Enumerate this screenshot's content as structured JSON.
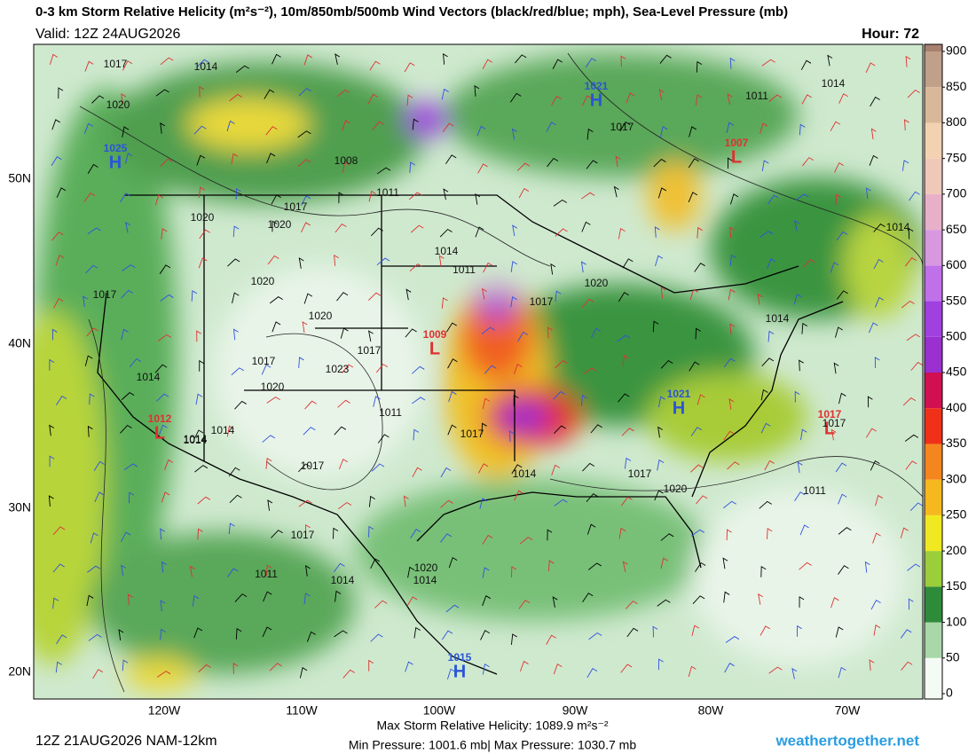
{
  "header": {
    "title": "0-3 km Storm Relative Helicity (m²s⁻²), 10m/850mb/500mb Wind Vectors (black/red/blue; mph), Sea-Level Pressure (mb)",
    "valid": "Valid: 12Z 24AUG2026",
    "hour": "Hour: 72"
  },
  "map": {
    "lat_labels": [
      "50N",
      "40N",
      "30N",
      "20N"
    ],
    "lon_labels": [
      "120W",
      "110W",
      "100W",
      "90W",
      "80W",
      "70W"
    ],
    "pressure_centers": [
      {
        "symbol": "H",
        "value": "1025",
        "color": "#2a55d8"
      },
      {
        "symbol": "H",
        "value": "1021",
        "color": "#2a55d8"
      },
      {
        "symbol": "L",
        "value": "1007",
        "color": "#e03030"
      },
      {
        "symbol": "L",
        "value": "1009",
        "color": "#e03030"
      },
      {
        "symbol": "H",
        "value": "1021",
        "color": "#2a55d8"
      },
      {
        "symbol": "L",
        "value": "1017",
        "color": "#e03030"
      },
      {
        "symbol": "L",
        "value": "1012",
        "color": "#e03030"
      },
      {
        "symbol": "H",
        "value": "1015",
        "color": "#2a55d8"
      }
    ],
    "isobar_labels": [
      "1017",
      "1014",
      "1020",
      "1008",
      "1011",
      "1020",
      "1017",
      "1020",
      "1014",
      "1011",
      "1017",
      "1020",
      "1017",
      "1020",
      "1017",
      "1023",
      "1014",
      "1020",
      "1017",
      "1014",
      "1014",
      "1017",
      "1011",
      "1014",
      "1017",
      "1017",
      "1020",
      "1014",
      "1017",
      "1014",
      "1011",
      "1014",
      "1017",
      "1020",
      "1014",
      "1011",
      "1020",
      "1014",
      "1014",
      "1017",
      "1011"
    ]
  },
  "colorbar": {
    "range": [
      0,
      900
    ],
    "ticks": [
      0,
      50,
      100,
      150,
      200,
      250,
      300,
      350,
      400,
      450,
      500,
      550,
      600,
      650,
      700,
      750,
      800,
      850,
      900
    ],
    "colors": [
      "#f4fbf4",
      "#a8d8a8",
      "#2e8b3a",
      "#9bcf3a",
      "#f0e820",
      "#f5b81e",
      "#f5861e",
      "#f03018",
      "#d01050",
      "#9a30d0",
      "#a040e0",
      "#c070e8",
      "#d898e0",
      "#e8b0c8",
      "#f0c8b8",
      "#f2d2b0",
      "#d8b898",
      "#c0a088",
      "#a88070"
    ]
  },
  "footer": {
    "run": "12Z 21AUG2026 NAM-12km",
    "max_helicity": "Max Storm Relative Helicity: 1089.9 m²s⁻²",
    "pressure_range": "Min Pressure: 1001.6 mb| Max Pressure: 1030.7 mb",
    "site": "weathertogether.net"
  }
}
